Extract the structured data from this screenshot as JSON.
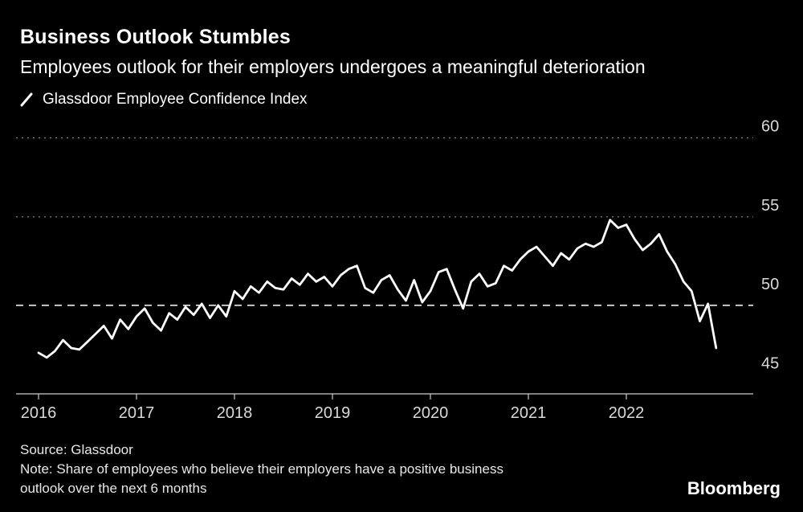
{
  "header": {
    "title": "Business Outlook Stumbles",
    "subtitle": "Employees outlook for their employers undergoes a meaningful deterioration"
  },
  "legend": {
    "label": "Glassdoor Employee Confidence Index"
  },
  "footer": {
    "source": "Source: Glassdoor",
    "note_line1": "Note: Share of employees who believe their employers have a positive business",
    "note_line2": "outlook over the next 6 months",
    "logo": "Bloomberg"
  },
  "chart_data": {
    "type": "line",
    "title": "Business Outlook Stumbles",
    "subtitle": "Employees outlook for their employers undergoes a meaningful deterioration",
    "x_tick_labels": [
      "2016",
      "2017",
      "2018",
      "2019",
      "2020",
      "2021",
      "2022"
    ],
    "yticks": [
      45,
      50,
      55,
      60
    ],
    "grid_yticks": [
      55,
      60
    ],
    "reference_line": 49.4,
    "ylim": [
      43.8,
      61.6
    ],
    "frequency": "monthly",
    "start": "2016-01",
    "series": [
      {
        "name": "Glassdoor Employee Confidence Index",
        "color": "#ffffff",
        "values": [
          46.4,
          46.1,
          46.5,
          47.2,
          46.7,
          46.6,
          47.1,
          47.6,
          48.1,
          47.3,
          48.5,
          47.9,
          48.7,
          49.2,
          48.3,
          47.8,
          48.9,
          48.5,
          49.3,
          48.8,
          49.5,
          48.6,
          49.4,
          48.7,
          50.3,
          49.8,
          50.6,
          50.2,
          50.9,
          50.5,
          50.4,
          51.1,
          50.7,
          51.4,
          50.9,
          51.2,
          50.6,
          51.3,
          51.7,
          51.9,
          50.5,
          50.2,
          51.0,
          51.3,
          50.4,
          49.7,
          51.0,
          49.6,
          50.3,
          51.5,
          51.7,
          50.4,
          49.2,
          50.9,
          51.4,
          50.6,
          50.8,
          51.9,
          51.6,
          52.3,
          52.8,
          53.1,
          52.5,
          51.9,
          52.7,
          52.3,
          53.0,
          53.3,
          53.1,
          53.4,
          54.8,
          54.3,
          54.5,
          53.6,
          52.9,
          53.3,
          53.9,
          52.8,
          52.0,
          50.9,
          50.3,
          48.4,
          49.5,
          46.7
        ]
      }
    ],
    "colors": {
      "background": "#000000",
      "axis": "#cccccc",
      "grid": "#8a8a8a",
      "labels": "#d9d9d9",
      "reference": "#ffffff"
    }
  }
}
